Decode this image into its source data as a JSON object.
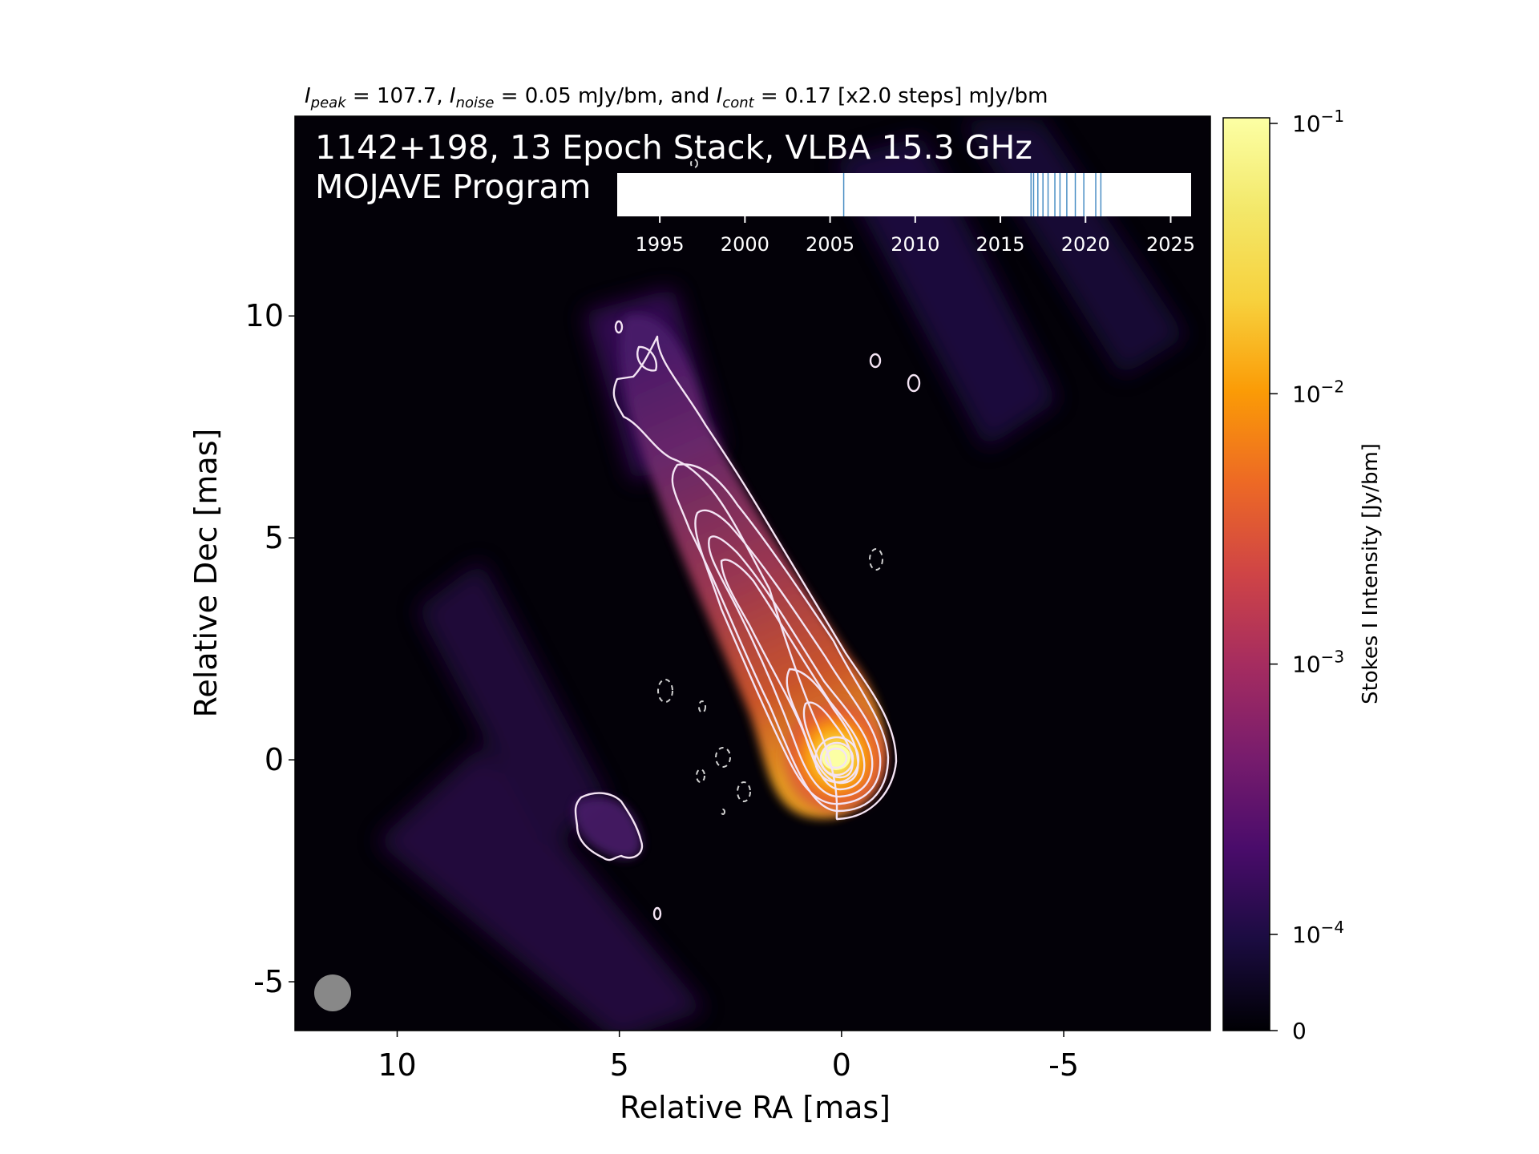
{
  "header": {
    "stats_line": "I_peak = 107.7, I_noise = 0.05 mJy/bm, and I_cont = 0.17 [x2.0 steps] mJy/bm",
    "stats": {
      "peak_prefix": "I",
      "peak_sub": "peak",
      "peak_text": " = 107.7, ",
      "noise_prefix": "I",
      "noise_sub": "noise",
      "noise_text": " = 0.05 mJy/bm, and ",
      "cont_prefix": "I",
      "cont_sub": "cont",
      "cont_text": " = 0.17 [x2.0 steps] mJy/bm"
    }
  },
  "plot": {
    "title_line1": "1142+198, 13 Epoch Stack, VLBA 15.3 GHz",
    "title_line2": "MOJAVE Program",
    "xlabel": "Relative RA [mas]",
    "ylabel": "Relative Dec [mas]"
  },
  "colorbar": {
    "label": "Stokes I Intensity [Jy/bm]",
    "colormap": "inferno",
    "ticks": [
      {
        "value": 0.1,
        "base": "10",
        "exp": "−1"
      },
      {
        "value": 0.01,
        "base": "10",
        "exp": "−2"
      },
      {
        "value": 0.001,
        "base": "10",
        "exp": "−3"
      },
      {
        "value": 0.0001,
        "base": "10",
        "exp": "−4"
      },
      {
        "value": 0,
        "base": "0",
        "exp": ""
      }
    ]
  },
  "epoch_timeline": {
    "tick_labels": [
      "1995",
      "2000",
      "2005",
      "2010",
      "2015",
      "2020",
      "2025"
    ],
    "epochs": [
      2005.8,
      2016.8,
      2016.95,
      2017.2,
      2017.5,
      2017.8,
      2018.2,
      2018.5,
      2018.9,
      2019.4,
      2019.9,
      2020.6,
      2020.9
    ]
  },
  "chart_data": {
    "type": "heatmap",
    "title": "1142+198, 13 Epoch Stack, VLBA 15.3 GHz",
    "subtitle": "MOJAVE Program",
    "xlabel": "Relative RA [mas]",
    "ylabel": "Relative Dec [mas]",
    "xlim": [
      12.3,
      -8.3
    ],
    "ylim": [
      -6.1,
      14.5
    ],
    "x_ticks": [
      10,
      5,
      0,
      -5
    ],
    "y_ticks": [
      10,
      5,
      0,
      -5
    ],
    "peak_intensity_mJy_per_beam": 107.7,
    "noise_mJy_per_beam": 0.05,
    "lowest_contour_mJy_per_beam": 0.17,
    "contour_step_factor": 2.0,
    "core_position": [
      0,
      0
    ],
    "jet_ridge": [
      {
        "ra": 0.0,
        "dec": 0.0
      },
      {
        "ra": 1.1,
        "dec": 2.0
      },
      {
        "ra": 2.4,
        "dec": 4.5
      },
      {
        "ra": 3.5,
        "dec": 6.6
      },
      {
        "ra": 4.3,
        "dec": 8.8
      }
    ],
    "beam": {
      "ra": 11.3,
      "dec": -5.3
    },
    "colorbar_scale": "log",
    "colorbar_ticks": [
      0,
      0.0001,
      0.001,
      0.01,
      0.1
    ],
    "n_epochs": 13
  }
}
